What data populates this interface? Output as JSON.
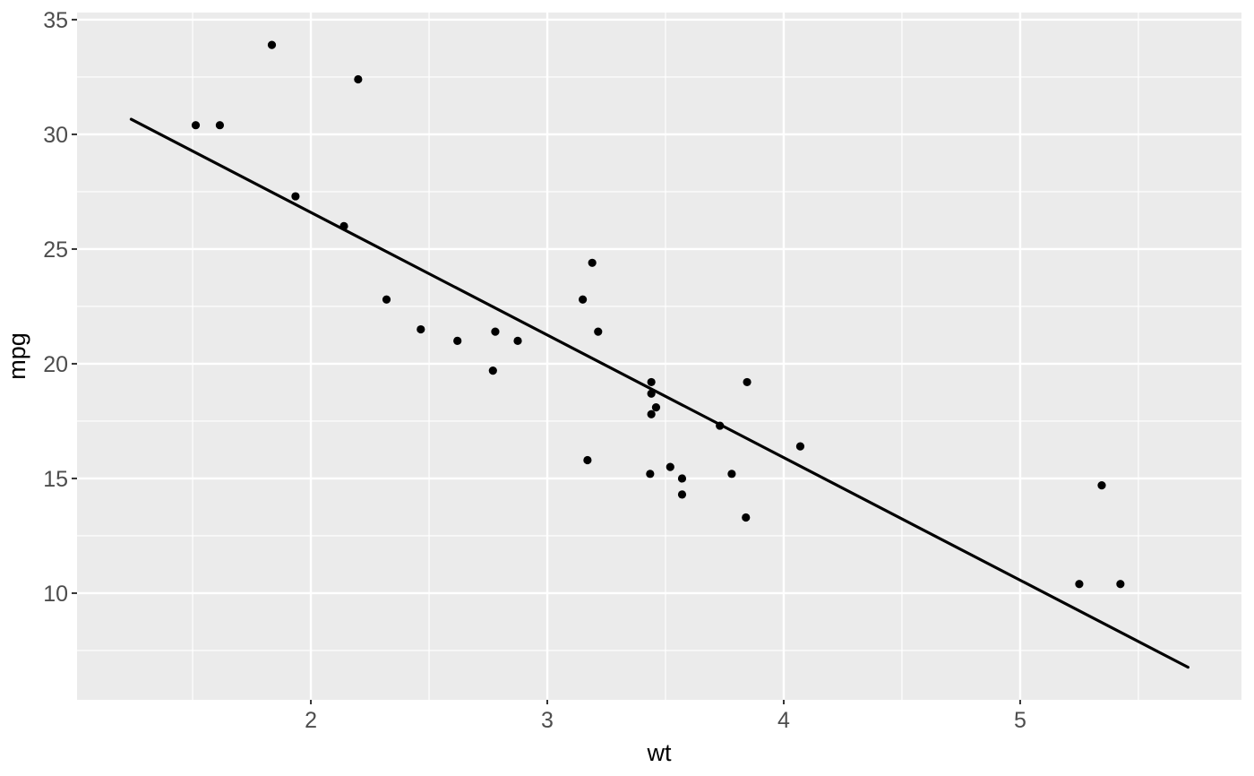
{
  "chart_data": {
    "type": "scatter",
    "xlabel": "wt",
    "ylabel": "mpg",
    "x_axis": {
      "label": "wt",
      "ticks": [
        2,
        3,
        4,
        5
      ],
      "minor_ticks": [
        1.5,
        2.5,
        3.5,
        4.5,
        5.5
      ],
      "range": [
        1.011,
        5.936
      ],
      "grid": true
    },
    "y_axis": {
      "label": "mpg",
      "ticks": [
        10,
        15,
        20,
        25,
        30,
        35
      ],
      "minor_ticks": [
        7.5,
        12.5,
        17.5,
        22.5,
        27.5,
        32.5
      ],
      "range": [
        5.35,
        35.31
      ],
      "grid": true
    },
    "points": [
      [
        2.62,
        21.0
      ],
      [
        2.875,
        21.0
      ],
      [
        2.32,
        22.8
      ],
      [
        3.215,
        21.4
      ],
      [
        3.44,
        18.7
      ],
      [
        3.46,
        18.1
      ],
      [
        3.57,
        14.3
      ],
      [
        3.19,
        24.4
      ],
      [
        3.15,
        22.8
      ],
      [
        3.44,
        19.2
      ],
      [
        3.44,
        17.8
      ],
      [
        4.07,
        16.4
      ],
      [
        3.73,
        17.3
      ],
      [
        3.78,
        15.2
      ],
      [
        5.25,
        10.4
      ],
      [
        5.424,
        10.4
      ],
      [
        5.345,
        14.7
      ],
      [
        2.2,
        32.4
      ],
      [
        1.615,
        30.4
      ],
      [
        1.835,
        33.9
      ],
      [
        2.465,
        21.5
      ],
      [
        3.52,
        15.5
      ],
      [
        3.435,
        15.2
      ],
      [
        3.84,
        13.3
      ],
      [
        3.845,
        19.2
      ],
      [
        1.935,
        27.3
      ],
      [
        2.14,
        26.0
      ],
      [
        1.513,
        30.4
      ],
      [
        3.17,
        15.8
      ],
      [
        2.77,
        19.7
      ],
      [
        3.57,
        15.0
      ],
      [
        2.78,
        21.4
      ]
    ],
    "trend_line": {
      "type": "linear",
      "intercept": 37.285,
      "slope": -5.344,
      "x_start": 1.24,
      "x_end": 5.71,
      "color": "#000000"
    },
    "style": {
      "panel_bg": "#EBEBEB",
      "grid_major_color": "#FFFFFF",
      "grid_minor_color": "#FFFFFF",
      "point_color": "#000000",
      "tick_mark_color": "#333333",
      "axis_text_color": "#4D4D4D",
      "axis_title_color": "#000000"
    }
  }
}
